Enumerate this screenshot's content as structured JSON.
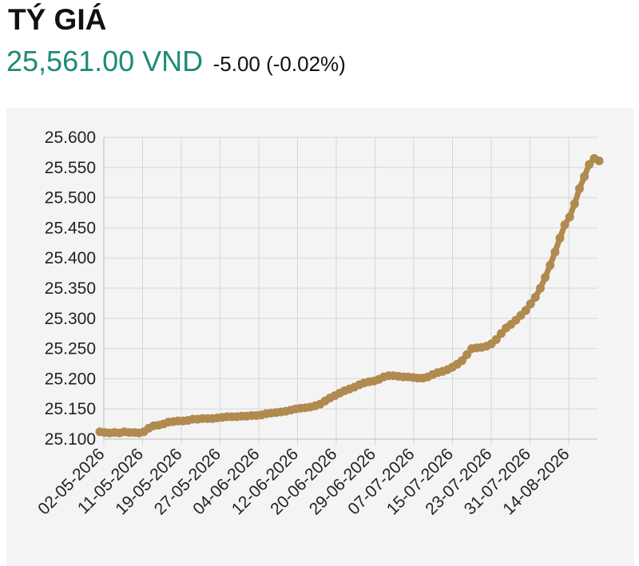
{
  "header": {
    "title": "TÝ GIÁ",
    "price": "25,561.00 VND",
    "change": "-5.00 (-0.02%)"
  },
  "colors": {
    "price": "#1f8a78",
    "line": "#b08a4f",
    "grid": "#d6d6d6",
    "panel": "#f4f4f4"
  },
  "chart_data": {
    "type": "line",
    "title": "",
    "xlabel": "",
    "ylabel": "",
    "ylim": [
      25100,
      25600
    ],
    "y_ticks": [
      "25.100",
      "25.150",
      "25.200",
      "25.250",
      "25.300",
      "25.350",
      "25.400",
      "25.450",
      "25.500",
      "25.550",
      "25.600"
    ],
    "x_ticks": [
      "02-05-2026",
      "11-05-2026",
      "19-05-2026",
      "27-05-2026",
      "04-06-2026",
      "12-06-2026",
      "20-06-2026",
      "29-06-2026",
      "07-07-2026",
      "15-07-2026",
      "23-07-2026",
      "31-07-2026",
      "14-08-2026"
    ],
    "grid": true,
    "legend": "none",
    "series": [
      {
        "values": [
          25112,
          25111,
          25110,
          25111,
          25110,
          25112,
          25111,
          25111,
          25110,
          25112,
          25118,
          25122,
          25123,
          25125,
          25128,
          25129,
          25130,
          25130,
          25131,
          25133,
          25133,
          25134,
          25134,
          25134,
          25135,
          25136,
          25137,
          25137,
          25137,
          25138,
          25138,
          25139,
          25139,
          25140,
          25142,
          25143,
          25144,
          25145,
          25146,
          25148,
          25150,
          25151,
          25152,
          25153,
          25155,
          25158,
          25163,
          25168,
          25172,
          25176,
          25180,
          25183,
          25186,
          25190,
          25193,
          25195,
          25196,
          25199,
          25203,
          25205,
          25205,
          25204,
          25203,
          25203,
          25202,
          25201,
          25201,
          25203,
          25207,
          25210,
          25212,
          25215,
          25219,
          25224,
          25230,
          25240,
          25250,
          25251,
          25252,
          25254,
          25258,
          25265,
          25275,
          25284,
          25290,
          25297,
          25305,
          25313,
          25324,
          25335,
          25350,
          25368,
          25388,
          25410,
          25433,
          25455,
          25468,
          25490,
          25515,
          25535,
          25555,
          25565,
          25561
        ]
      }
    ]
  }
}
